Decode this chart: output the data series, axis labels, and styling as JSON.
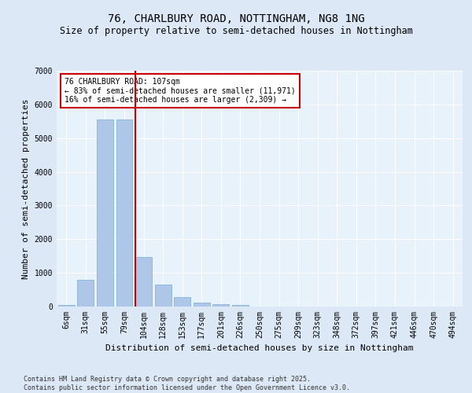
{
  "title": "76, CHARLBURY ROAD, NOTTINGHAM, NG8 1NG",
  "subtitle": "Size of property relative to semi-detached houses in Nottingham",
  "xlabel": "Distribution of semi-detached houses by size in Nottingham",
  "ylabel": "Number of semi-detached properties",
  "categories": [
    "6sqm",
    "31sqm",
    "55sqm",
    "79sqm",
    "104sqm",
    "128sqm",
    "153sqm",
    "177sqm",
    "201sqm",
    "226sqm",
    "250sqm",
    "275sqm",
    "299sqm",
    "323sqm",
    "348sqm",
    "372sqm",
    "397sqm",
    "421sqm",
    "446sqm",
    "470sqm",
    "494sqm"
  ],
  "values": [
    50,
    790,
    5560,
    5560,
    1470,
    660,
    270,
    120,
    80,
    50,
    0,
    0,
    0,
    0,
    0,
    0,
    0,
    0,
    0,
    0,
    0
  ],
  "bar_color": "#aec6e8",
  "bar_edge_color": "#7aadd4",
  "vline_color": "#cc0000",
  "annotation_text": "76 CHARLBURY ROAD: 107sqm\n← 83% of semi-detached houses are smaller (11,971)\n16% of semi-detached houses are larger (2,309) →",
  "annotation_box_color": "#cc0000",
  "ylim": [
    0,
    7000
  ],
  "yticks": [
    0,
    1000,
    2000,
    3000,
    4000,
    5000,
    6000,
    7000
  ],
  "footer_line1": "Contains HM Land Registry data © Crown copyright and database right 2025.",
  "footer_line2": "Contains public sector information licensed under the Open Government Licence v3.0.",
  "bg_color": "#dce8f5",
  "plot_bg_color": "#e8f2fb",
  "title_fontsize": 10,
  "subtitle_fontsize": 8.5,
  "axis_label_fontsize": 8,
  "tick_fontsize": 7,
  "annotation_fontsize": 7,
  "footer_fontsize": 6
}
